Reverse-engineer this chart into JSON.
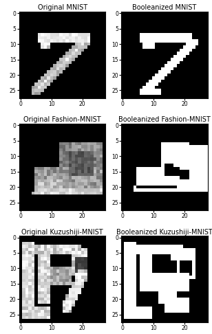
{
  "titles": [
    [
      "Original MNIST",
      "Booleanized MNIST"
    ],
    [
      "Original Fashion-MNIST",
      "Booleanized Fashion-MNIST"
    ],
    [
      "Original Kuzushiji-MNIST",
      "Booleanized Kuzushiji-MNIST"
    ]
  ],
  "title_fontsize": 7,
  "tick_fontsize": 5.5,
  "figsize": [
    3.08,
    4.86
  ],
  "dpi": 100
}
